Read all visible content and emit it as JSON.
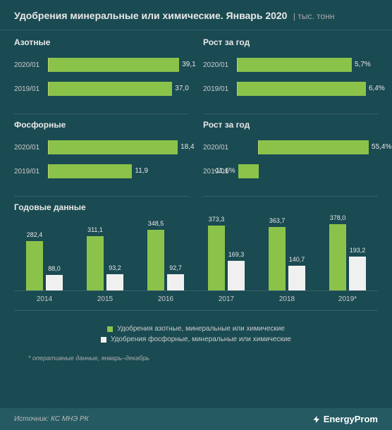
{
  "header": {
    "title": "Удобрения минеральные или химические. Январь 2020",
    "unit": "| тыс. тонн"
  },
  "colors": {
    "bg": "#1a4a52",
    "bar_green": "#8bc34a",
    "bar_white": "#f0f0f0",
    "axis": "#b8d070",
    "divider": "#3a6068"
  },
  "panels": {
    "nitrogen": {
      "title": "Азотные",
      "max": 42,
      "rows": [
        {
          "label": "2020/01",
          "value": 39.1,
          "display": "39,1"
        },
        {
          "label": "2019/01",
          "value": 37.0,
          "display": "37,0"
        }
      ]
    },
    "nitrogen_growth": {
      "title": "Рост за год",
      "max": 7,
      "rows": [
        {
          "label": "2020/01",
          "value": 5.7,
          "display": "5,7%"
        },
        {
          "label": "2019/01",
          "value": 6.4,
          "display": "6,4%"
        }
      ]
    },
    "phosphor": {
      "title": "Фосфорные",
      "max": 20,
      "rows": [
        {
          "label": "2020/01",
          "value": 18.4,
          "display": "18,4"
        },
        {
          "label": "2019/01",
          "value": 11.9,
          "display": "11,9"
        }
      ]
    },
    "phosphor_growth": {
      "title": "Рост за год",
      "max": 60,
      "neg_scale": 0.3,
      "rows": [
        {
          "label": "2020/01",
          "value": 55.4,
          "display": "55,4%"
        },
        {
          "label": "2019/01",
          "value": -11.6,
          "display": "-11,6%"
        }
      ]
    }
  },
  "annual": {
    "title": "Годовые данные",
    "max": 400,
    "years": [
      {
        "year": "2014",
        "green": 282.4,
        "green_d": "282,4",
        "white": 88.0,
        "white_d": "88,0"
      },
      {
        "year": "2015",
        "green": 311.1,
        "green_d": "311,1",
        "white": 93.2,
        "white_d": "93,2"
      },
      {
        "year": "2016",
        "green": 348.5,
        "green_d": "348,5",
        "white": 92.7,
        "white_d": "92,7"
      },
      {
        "year": "2017",
        "green": 373.3,
        "green_d": "373,3",
        "white": 169.3,
        "white_d": "169,3"
      },
      {
        "year": "2018",
        "green": 363.7,
        "green_d": "363,7",
        "white": 140.7,
        "white_d": "140,7"
      },
      {
        "year": "2019*",
        "green": 378.0,
        "green_d": "378,0",
        "white": 193.2,
        "white_d": "193,2"
      }
    ]
  },
  "legend": {
    "green": "Удобрения азотные, минеральные или химические",
    "white": "Удобрения фосфорные, минеральные или химические",
    "green_color": "#8bc34a",
    "white_color": "#f0f0f0"
  },
  "footnote": "* оперативные данные, январь–декабрь",
  "source": "Источник: КС МНЭ РК",
  "brand": "EnergyProm"
}
